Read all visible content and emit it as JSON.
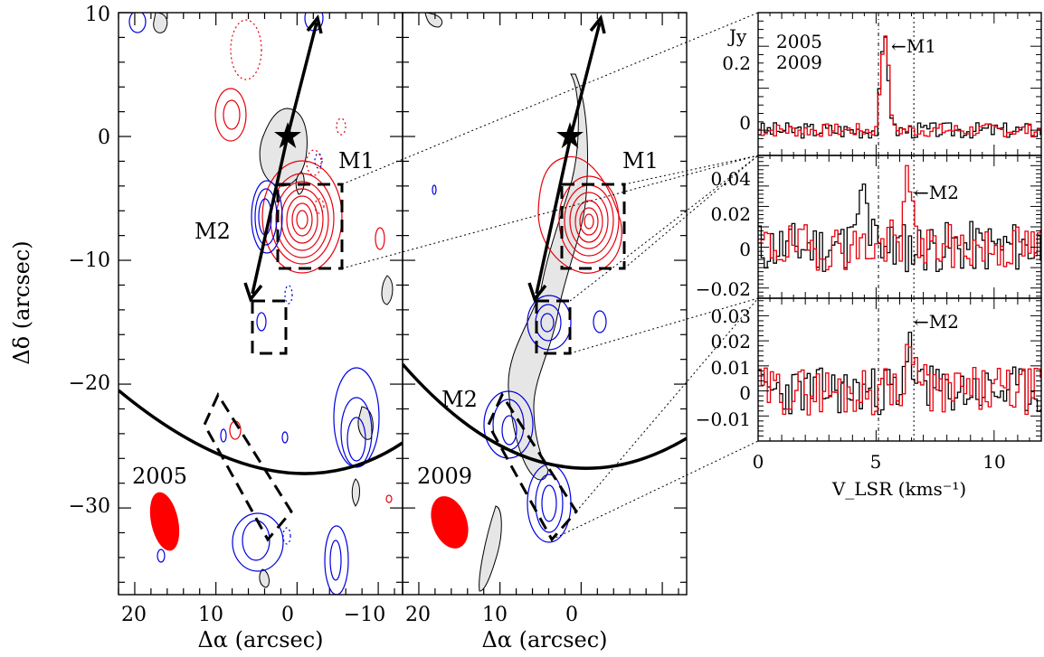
{
  "chart_data": [
    {
      "type": "contour-map",
      "panel": "2005",
      "epoch_label": "2005",
      "xlabel": "Δα (arcsec)",
      "ylabel": "Δδ (arcsec)",
      "xlim": [
        22,
        -13
      ],
      "ylim": [
        -37,
        10
      ],
      "x_ticks": [
        "20",
        "10",
        "0",
        "−10"
      ],
      "y_ticks": [
        "10",
        "0",
        "−10",
        "−20",
        "−30"
      ],
      "annotations": [
        {
          "text": "M1",
          "x": -4.5,
          "y": -2,
          "color": "#e8000b"
        },
        {
          "text": "M2",
          "x": 10.5,
          "y": -8,
          "color": "#0000e0"
        }
      ],
      "source_star": {
        "x": 0.8,
        "y": 0.2
      },
      "outflow_arrow_tips": [
        [
          -3.5,
          9.5
        ],
        [
          5.0,
          -13.5
        ]
      ]
    },
    {
      "type": "contour-map",
      "panel": "2009",
      "epoch_label": "2009",
      "xlabel": "Δα (arcsec)",
      "xlim": [
        22,
        -13
      ],
      "ylim": [
        -37,
        10
      ],
      "x_ticks": [
        "20",
        "10",
        "0",
        "−10"
      ],
      "annotations": [
        {
          "text": "M1",
          "x": -4.5,
          "y": -2,
          "color": "#e8000b"
        },
        {
          "text": "M2",
          "x": 11.0,
          "y": -22.5,
          "color": "#0000e0"
        }
      ],
      "source_star": {
        "x": 0.8,
        "y": 0.2
      },
      "outflow_arrow_tips": [
        [
          -3.5,
          9.5
        ],
        [
          5.0,
          -13.5
        ]
      ]
    },
    {
      "type": "line",
      "panel": "spectra",
      "xlabel": "V_LSR (kms⁻¹)",
      "xlim": [
        0,
        12
      ],
      "x_ticks": [
        "0",
        "5",
        "10"
      ],
      "unit_label": "Jy",
      "series_colors": {
        "2005": "#000000",
        "2009": "#e8000b"
      },
      "legend": [
        "2005",
        "2009"
      ],
      "vlines": [
        5.1,
        6.6
      ],
      "subpanels": [
        {
          "ylim": [
            -0.06,
            0.28
          ],
          "y_ticks": [
            "0.2",
            "0"
          ],
          "annotation": "M1",
          "series": [
            {
              "name": "2005",
              "peak_v": 5.3,
              "peak": 0.24,
              "rms": 0.012,
              "seed": 3
            },
            {
              "name": "2009",
              "peak_v": 5.3,
              "peak": 0.26,
              "rms": 0.01,
              "seed": 7
            }
          ]
        },
        {
          "ylim": [
            -0.025,
            0.045
          ],
          "y_ticks": [
            "0.04",
            "0.02",
            "0",
            "−0.02"
          ],
          "annotation": "M2",
          "series": [
            {
              "name": "2005",
              "peak_v": 4.4,
              "peak": 0.03,
              "rms": 0.008,
              "seed": 11
            },
            {
              "name": "2009",
              "peak_v": 6.3,
              "peak": 0.036,
              "rms": 0.007,
              "seed": 19
            }
          ]
        },
        {
          "ylim": [
            -0.02,
            0.037
          ],
          "y_ticks": [
            "0.03",
            "0.02",
            "0.01",
            "0",
            "−0.01"
          ],
          "annotation": "M2",
          "series": [
            {
              "name": "2005",
              "peak_v": 6.3,
              "peak": 0.02,
              "rms": 0.006,
              "seed": 23
            },
            {
              "name": "2009",
              "peak_v": 6.4,
              "peak": 0.028,
              "rms": 0.006,
              "seed": 29
            }
          ]
        }
      ]
    }
  ]
}
